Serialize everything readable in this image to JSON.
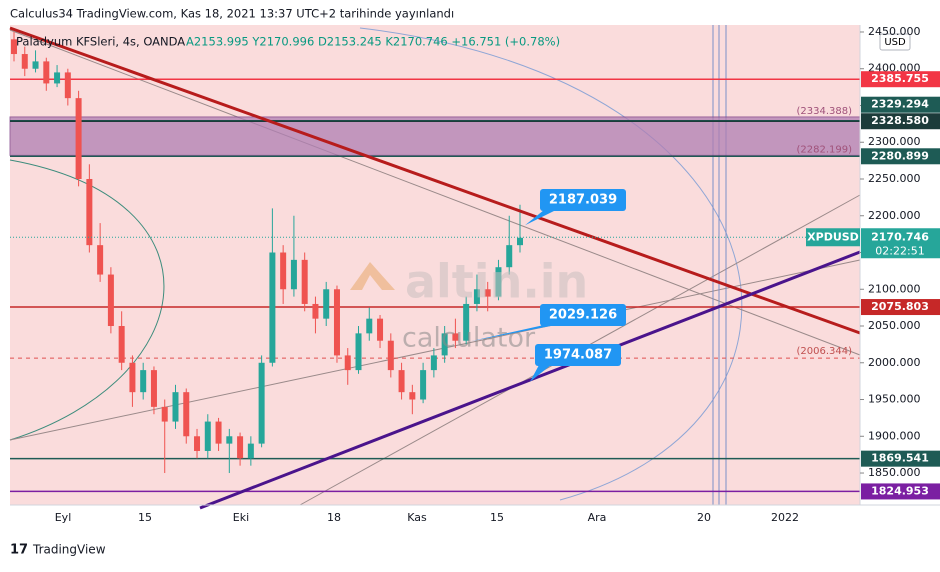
{
  "header": {
    "title": "Calculus34 TradingView.com, Kas 18, 2021 13:37 UTC+2 tarihinde yayınlandı",
    "symbol": "Paladyum KFSleri, 4s, OANDA",
    "ohlc": "A2153.995 Y2170.996 D2153.245 K2170.746 +16.751 (+0.78%)"
  },
  "footer": {
    "brand": "TradingView"
  },
  "watermark": {
    "logo": "altin.in",
    "sub": "calculator"
  },
  "chart_data": {
    "type": "candlestick",
    "currency": "USD",
    "ylim": [
      1806.5,
      2459.5
    ],
    "yticks": [
      {
        "value": 2450,
        "label": "2450.000"
      },
      {
        "value": 2400,
        "label": "2400.000"
      },
      {
        "value": 2350,
        "label": "2350.000"
      },
      {
        "value": 2300,
        "label": "2300.000"
      },
      {
        "value": 2250,
        "label": "2250.000"
      },
      {
        "value": 2200,
        "label": "2200.000"
      },
      {
        "value": 2150,
        "label": "2150.000"
      },
      {
        "value": 2100,
        "label": "2100.000"
      },
      {
        "value": 2050,
        "label": "2050.000"
      },
      {
        "value": 2000,
        "label": "2000.000"
      },
      {
        "value": 1950,
        "label": "1950.000"
      },
      {
        "value": 1900,
        "label": "1900.000"
      },
      {
        "value": 1850,
        "label": "1850.000"
      }
    ],
    "xticks": [
      "Eyl",
      "15",
      "Eki",
      "18",
      "Kas",
      "15",
      "Ara",
      "20",
      "2022"
    ],
    "up_color": "#26a69a",
    "down_color": "#ef5350",
    "candles": [
      [
        2440,
        2450,
        2410,
        2420
      ],
      [
        2420,
        2430,
        2390,
        2400
      ],
      [
        2400,
        2425,
        2395,
        2410
      ],
      [
        2410,
        2415,
        2370,
        2380
      ],
      [
        2380,
        2405,
        2375,
        2395
      ],
      [
        2395,
        2400,
        2350,
        2360
      ],
      [
        2360,
        2370,
        2240,
        2250
      ],
      [
        2250,
        2270,
        2150,
        2160
      ],
      [
        2160,
        2190,
        2110,
        2120
      ],
      [
        2120,
        2130,
        2040,
        2050
      ],
      [
        2050,
        2070,
        1990,
        2000
      ],
      [
        2000,
        2010,
        1940,
        1960
      ],
      [
        1960,
        2000,
        1950,
        1990
      ],
      [
        1990,
        1995,
        1930,
        1940
      ],
      [
        1940,
        1950,
        1850,
        1920
      ],
      [
        1920,
        1970,
        1910,
        1960
      ],
      [
        1960,
        1965,
        1890,
        1900
      ],
      [
        1900,
        1910,
        1870,
        1880
      ],
      [
        1880,
        1930,
        1870,
        1920
      ],
      [
        1920,
        1925,
        1880,
        1890
      ],
      [
        1890,
        1910,
        1850,
        1900
      ],
      [
        1900,
        1905,
        1860,
        1870
      ],
      [
        1870,
        1900,
        1860,
        1890
      ],
      [
        1890,
        2010,
        1885,
        2000
      ],
      [
        2000,
        2210,
        1995,
        2150
      ],
      [
        2150,
        2160,
        2080,
        2100
      ],
      [
        2100,
        2200,
        2090,
        2140
      ],
      [
        2140,
        2150,
        2070,
        2080
      ],
      [
        2080,
        2090,
        2040,
        2060
      ],
      [
        2060,
        2110,
        2050,
        2100
      ],
      [
        2100,
        2105,
        2000,
        2010
      ],
      [
        2010,
        2020,
        1970,
        1990
      ],
      [
        1990,
        2050,
        1985,
        2040
      ],
      [
        2040,
        2075,
        2030,
        2060
      ],
      [
        2060,
        2065,
        2020,
        2030
      ],
      [
        2030,
        2040,
        1980,
        1990
      ],
      [
        1990,
        2000,
        1950,
        1960
      ],
      [
        1960,
        1970,
        1930,
        1950
      ],
      [
        1950,
        2000,
        1945,
        1990
      ],
      [
        1990,
        2020,
        1980,
        2010
      ],
      [
        2010,
        2050,
        2000,
        2040
      ],
      [
        2040,
        2060,
        2020,
        2030
      ],
      [
        2030,
        2090,
        2025,
        2080
      ],
      [
        2080,
        2120,
        2070,
        2100
      ],
      [
        2100,
        2110,
        2070,
        2090
      ],
      [
        2090,
        2140,
        2085,
        2130
      ],
      [
        2130,
        2200,
        2120,
        2160
      ],
      [
        2160,
        2215,
        2150,
        2170
      ]
    ],
    "price_lines": [
      {
        "value": 2385.755,
        "color": "#f23645"
      },
      {
        "value": 2329.294,
        "color": "#1e5b55"
      },
      {
        "value": 2328.58,
        "label": "2328.580",
        "color": "#1c3b3a"
      },
      {
        "value": 2280.899,
        "color": "#1e5b55"
      },
      {
        "value": 2075.803,
        "color": "#c62828"
      },
      {
        "value": 1869.541,
        "color": "#1e5b55"
      },
      {
        "value": 1824.953,
        "color": "#7b1fa2"
      }
    ],
    "zone": [
      {
        "value": 2334.388,
        "label": "(2334.388)"
      },
      {
        "value": 2282.199,
        "label": "(2282.199)"
      }
    ],
    "dashed": {
      "value": 2006.344,
      "label": "(2006.344)"
    },
    "last": {
      "symbol": "XPDUSD",
      "value": 2170.746,
      "countdown": "02:22:51",
      "color": "#26a69a"
    },
    "callouts": [
      {
        "value": 2187.039
      },
      {
        "value": 2029.126
      },
      {
        "value": 1974.087
      }
    ]
  }
}
